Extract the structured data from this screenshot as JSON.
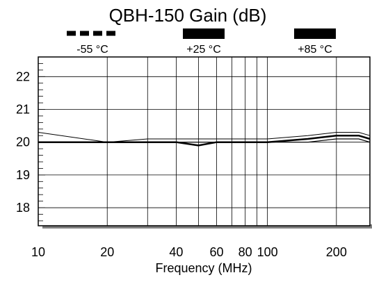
{
  "chart_data": {
    "type": "line",
    "title": "QBH-150 Gain (dB)",
    "xlabel": "Frequency (MHz)",
    "ylabel": "",
    "x_scale": "log",
    "xlim": [
      10,
      280
    ],
    "ylim": [
      17.45,
      22.6
    ],
    "grid": true,
    "legend_position": "top",
    "x_ticks": [
      10,
      20,
      40,
      60,
      80,
      100,
      200
    ],
    "x_tick_labels": [
      "10",
      "20",
      "40",
      "60",
      "80",
      "100",
      "200"
    ],
    "x_gridlines": [
      20,
      30,
      40,
      50,
      60,
      70,
      80,
      90,
      100,
      200
    ],
    "y_ticks": [
      18,
      19,
      20,
      21,
      22
    ],
    "y_tick_labels": [
      "18",
      "19",
      "20",
      "21",
      "22"
    ],
    "series": [
      {
        "name": "-55 °C",
        "style": "dashed",
        "color": "#000000",
        "x": [
          10,
          20,
          30,
          40,
          50,
          60,
          80,
          100,
          150,
          200,
          250,
          280
        ],
        "y": [
          20.3,
          20.0,
          20.1,
          20.1,
          20.1,
          20.1,
          20.1,
          20.1,
          20.2,
          20.3,
          20.3,
          20.2
        ]
      },
      {
        "name": "+25 °C",
        "style": "solid-thick",
        "color": "#000000",
        "x": [
          10,
          20,
          30,
          40,
          50,
          60,
          80,
          100,
          150,
          200,
          250,
          280
        ],
        "y": [
          20.0,
          20.0,
          20.0,
          20.0,
          19.9,
          20.0,
          20.0,
          20.0,
          20.1,
          20.2,
          20.2,
          20.1
        ]
      },
      {
        "name": "+85 °C",
        "style": "solid",
        "color": "#000000",
        "x": [
          10,
          20,
          30,
          40,
          50,
          60,
          80,
          100,
          150,
          200,
          250,
          280
        ],
        "y": [
          20.0,
          20.0,
          20.0,
          20.0,
          20.0,
          20.0,
          20.0,
          20.0,
          20.0,
          20.1,
          20.1,
          20.0
        ]
      }
    ]
  }
}
